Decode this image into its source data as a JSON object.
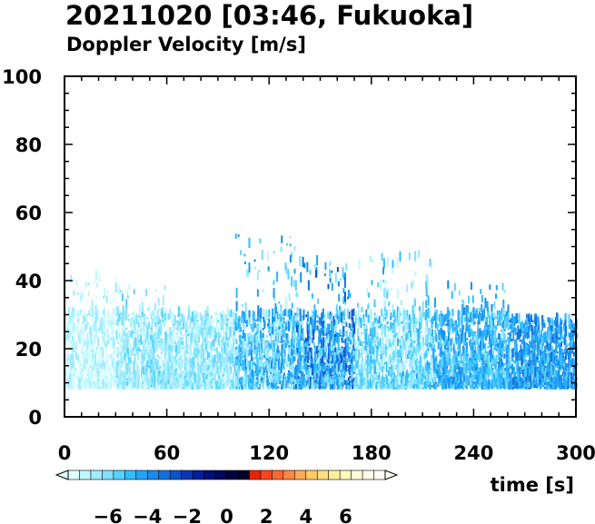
{
  "title": "20211020 [03:46, Fukuoka]",
  "subtitle": "Doppler Velocity [m/s]",
  "chart_data": {
    "type": "heatmap",
    "xlabel": "time [s]",
    "ylabel": "",
    "xlim": [
      0,
      300
    ],
    "ylim": [
      0,
      100
    ],
    "x_ticks": [
      0,
      60,
      120,
      180,
      240,
      300
    ],
    "y_ticks": [
      0,
      20,
      40,
      60,
      80,
      100
    ],
    "grid": false,
    "colorbar": {
      "label": "Doppler Velocity [m/s]",
      "range": [
        -8,
        8
      ],
      "tick_values": [
        -6,
        -4,
        -2,
        0,
        2,
        4,
        6
      ],
      "tick_labels": [
        "−6",
        "−4",
        "−2",
        "0",
        "2",
        "4",
        "6"
      ],
      "colors": [
        "#e0ffff",
        "#c0f6ff",
        "#a0ecff",
        "#80e2ff",
        "#55d2ff",
        "#33bbff",
        "#22a4f6",
        "#1a8ceb",
        "#1470e0",
        "#0e52cc",
        "#0a36b4",
        "#061e96",
        "#041078",
        "#02085a",
        "#01043e",
        "#000028",
        "#ee2200",
        "#ff4422",
        "#ff6633",
        "#ff8844",
        "#ffaa55",
        "#ffcc66",
        "#ffe080",
        "#fff0a0",
        "#fff8c0",
        "#fffbd8",
        "#fffde8",
        "#fffff4"
      ]
    },
    "regions": [
      {
        "t_start": 0,
        "t_end": 30,
        "z_min": 8,
        "z_max": 42,
        "velocity_range": [
          -8,
          -6.5
        ]
      },
      {
        "t_start": 30,
        "t_end": 60,
        "z_min": 8,
        "z_max": 38,
        "velocity_range": [
          -7.5,
          -5.5
        ]
      },
      {
        "t_start": 60,
        "t_end": 100,
        "z_min": 8,
        "z_max": 30,
        "velocity_range": [
          -7.5,
          -5.5
        ]
      },
      {
        "t_start": 100,
        "t_end": 135,
        "z_min": 8,
        "z_max": 53,
        "velocity_range": [
          -7,
          -3.5
        ]
      },
      {
        "t_start": 135,
        "t_end": 170,
        "z_min": 8,
        "z_max": 45,
        "velocity_range": [
          -6.5,
          -2.5
        ]
      },
      {
        "t_start": 170,
        "t_end": 215,
        "z_min": 8,
        "z_max": 47,
        "velocity_range": [
          -7.5,
          -4.5
        ]
      },
      {
        "t_start": 215,
        "t_end": 260,
        "z_min": 8,
        "z_max": 38,
        "velocity_range": [
          -6,
          -3.5
        ]
      },
      {
        "t_start": 260,
        "t_end": 300,
        "z_min": 8,
        "z_max": 28,
        "velocity_range": [
          -5.5,
          -3
        ]
      }
    ]
  }
}
